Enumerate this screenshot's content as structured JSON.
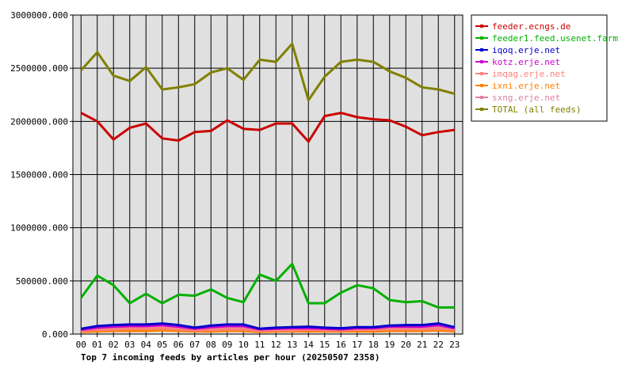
{
  "chart_data": {
    "type": "line",
    "title": "Top 7 incoming feeds by articles per hour (20250507 2358)",
    "xlabel": "",
    "ylabel": "",
    "categories": [
      "00",
      "01",
      "02",
      "03",
      "04",
      "05",
      "06",
      "07",
      "08",
      "09",
      "10",
      "11",
      "12",
      "13",
      "14",
      "15",
      "16",
      "17",
      "18",
      "19",
      "20",
      "21",
      "22",
      "23"
    ],
    "ylim": [
      0,
      3000000
    ],
    "yticks": [
      "0.000",
      "500000.000",
      "1000000.000",
      "1500000.000",
      "2000000.000",
      "2500000.000",
      "3000000.000"
    ],
    "grid": true,
    "legend_position": "right",
    "plot_background": "#e0e0e0",
    "series": [
      {
        "name": "feeder.ecngs.de",
        "color": "#cc0000",
        "values": [
          2080000,
          2000000,
          1830000,
          1940000,
          1980000,
          1840000,
          1820000,
          1900000,
          1910000,
          2010000,
          1930000,
          1920000,
          1980000,
          1980000,
          1810000,
          2050000,
          2080000,
          2040000,
          2020000,
          2010000,
          1950000,
          1870000,
          1900000,
          1920000
        ]
      },
      {
        "name": "feeder1.feed.usenet.farm",
        "color": "#00b000",
        "values": [
          340000,
          550000,
          460000,
          290000,
          380000,
          290000,
          370000,
          360000,
          420000,
          340000,
          300000,
          560000,
          500000,
          660000,
          290000,
          290000,
          390000,
          460000,
          430000,
          320000,
          300000,
          310000,
          250000,
          250000
        ]
      },
      {
        "name": "iqoq.erje.net",
        "color": "#0000cc",
        "values": [
          50000,
          75000,
          85000,
          90000,
          90000,
          100000,
          85000,
          60000,
          80000,
          90000,
          90000,
          50000,
          60000,
          65000,
          70000,
          60000,
          55000,
          65000,
          65000,
          80000,
          85000,
          85000,
          100000,
          65000
        ]
      },
      {
        "name": "kotz.erje.net",
        "color": "#cc00cc",
        "values": [
          40000,
          60000,
          70000,
          75000,
          75000,
          85000,
          70000,
          50000,
          65000,
          75000,
          75000,
          45000,
          50000,
          55000,
          55000,
          50000,
          45000,
          55000,
          55000,
          70000,
          70000,
          70000,
          85000,
          55000
        ]
      },
      {
        "name": "imqag.erje.net",
        "color": "#ff8080",
        "values": [
          30000,
          40000,
          45000,
          50000,
          50000,
          55000,
          45000,
          35000,
          40000,
          45000,
          45000,
          30000,
          35000,
          35000,
          40000,
          35000,
          35000,
          40000,
          40000,
          45000,
          45000,
          45000,
          50000,
          40000
        ]
      },
      {
        "name": "ixni.erje.net",
        "color": "#ff8000",
        "values": [
          20000,
          25000,
          30000,
          30000,
          30000,
          35000,
          30000,
          25000,
          25000,
          30000,
          30000,
          20000,
          25000,
          25000,
          25000,
          25000,
          25000,
          25000,
          25000,
          30000,
          30000,
          30000,
          35000,
          25000
        ]
      },
      {
        "name": "sxng.erje.net",
        "color": "#e080a0",
        "values": [
          35000,
          50000,
          55000,
          60000,
          60000,
          65000,
          55000,
          40000,
          50000,
          55000,
          55000,
          35000,
          40000,
          45000,
          45000,
          40000,
          40000,
          45000,
          45000,
          55000,
          55000,
          55000,
          70000,
          45000
        ]
      },
      {
        "name": "TOTAL (all feeds)",
        "color": "#808000",
        "values": [
          2480000,
          2650000,
          2430000,
          2380000,
          2510000,
          2300000,
          2320000,
          2350000,
          2460000,
          2500000,
          2390000,
          2580000,
          2560000,
          2730000,
          2200000,
          2420000,
          2560000,
          2580000,
          2560000,
          2470000,
          2410000,
          2320000,
          2300000,
          2260000
        ]
      }
    ]
  }
}
